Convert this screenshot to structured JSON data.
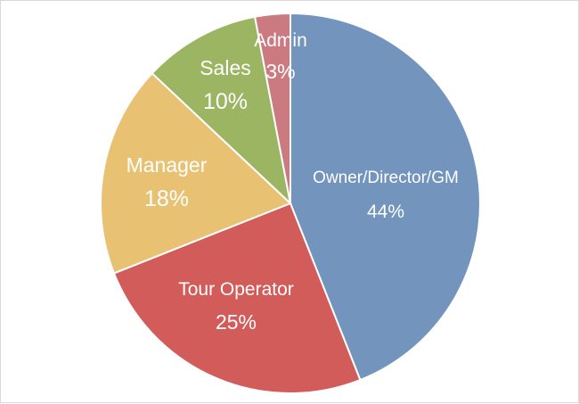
{
  "chart_data": {
    "type": "pie",
    "title": "",
    "legend": "none",
    "slices": [
      {
        "name": "Owner/Director/GM",
        "value": 44,
        "label": "44%",
        "color": "#7394bc"
      },
      {
        "name": "Tour Operator",
        "value": 25,
        "label": "25%",
        "color": "#d25c59"
      },
      {
        "name": "Manager",
        "value": 18,
        "label": "18%",
        "color": "#e8c173"
      },
      {
        "name": "Sales",
        "value": 10,
        "label": "10%",
        "color": "#9bb562"
      },
      {
        "name": "Admin",
        "value": 3,
        "label": "3%",
        "color": "#cb7a80"
      }
    ]
  }
}
